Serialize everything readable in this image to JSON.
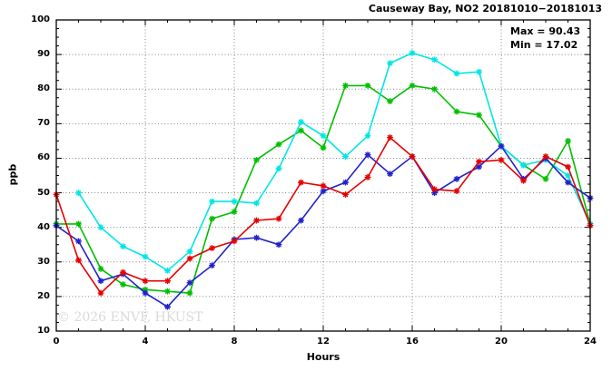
{
  "title": "Causeway Bay, NO2 20181010−20181013",
  "legend": {
    "max_label": "Max = 90.43",
    "min_label": "Min = 17.02"
  },
  "watermark": "© 2026 ENVF, HKUST",
  "axis": {
    "xlabel": "Hours",
    "ylabel": "ppb"
  },
  "colors": {
    "red": "#e60000",
    "green": "#00c000",
    "blue": "#2222cc",
    "cyan": "#00e6e6",
    "grid": "#858585",
    "border": "#000000"
  },
  "chart_data": {
    "type": "line",
    "title": "Causeway Bay, NO2 20181010−20181013",
    "xlabel": "Hours",
    "ylabel": "ppb",
    "xlim": [
      0,
      24
    ],
    "ylim": [
      10,
      100
    ],
    "x_major_ticks": [
      0,
      4,
      8,
      12,
      16,
      20,
      24
    ],
    "x_minor_step": 1,
    "y_major_ticks": [
      10,
      20,
      30,
      40,
      50,
      60,
      70,
      80,
      90,
      100
    ],
    "y_minor_step": 2.5,
    "grid": true,
    "legend_position": "top-right-inside",
    "annotations": {
      "max": 90.43,
      "min": 17.02
    },
    "marker": "asterisk",
    "x": [
      0,
      1,
      2,
      3,
      4,
      5,
      6,
      7,
      8,
      9,
      10,
      11,
      12,
      13,
      14,
      15,
      16,
      17,
      18,
      19,
      20,
      21,
      22,
      23,
      24
    ],
    "series": [
      {
        "name": "green",
        "color": "#00c000",
        "values": [
          41,
          41,
          28,
          23.5,
          22,
          21.5,
          21,
          42.5,
          44.5,
          59.5,
          64,
          68,
          63,
          81,
          81,
          76.5,
          81,
          80,
          73.5,
          72.5,
          63.5,
          58,
          54,
          65,
          41
        ]
      },
      {
        "name": "cyan",
        "color": "#00e6e6",
        "values": [
          null,
          50,
          40,
          34.5,
          31.5,
          27.5,
          33,
          47.5,
          47.5,
          47,
          57,
          70.5,
          66.5,
          60.5,
          66.5,
          87.5,
          90.43,
          88.5,
          84.5,
          85,
          63.5,
          58,
          59.5,
          55,
          41
        ]
      },
      {
        "name": "blue",
        "color": "#2222cc",
        "values": [
          40.5,
          36,
          24.5,
          26.5,
          21,
          17.02,
          24,
          29,
          36.5,
          37,
          35,
          42,
          50.5,
          53,
          61,
          55.5,
          60.5,
          50,
          54,
          57.5,
          63.5,
          54,
          60,
          53,
          48.5
        ]
      },
      {
        "name": "red",
        "color": "#e60000",
        "values": [
          49.5,
          30.5,
          21,
          27,
          24.5,
          24.5,
          31,
          34,
          36,
          42,
          42.5,
          53,
          52,
          49.5,
          54.5,
          66,
          60.5,
          51,
          50.5,
          59,
          59.5,
          53.5,
          60.5,
          57.5,
          40.5
        ]
      }
    ]
  }
}
